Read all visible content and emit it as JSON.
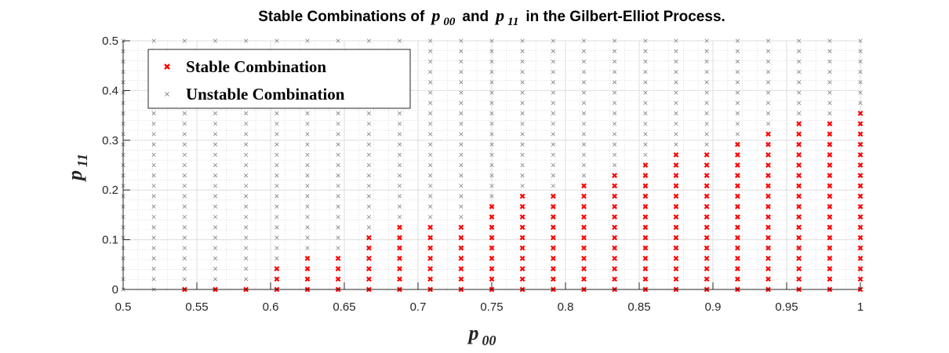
{
  "chart_data": {
    "type": "scatter",
    "title": {
      "prefix": "Stable Combinations of",
      "var1": "p",
      "var1_sub": "00",
      "middle": "and",
      "var2": "p",
      "var2_sub": "11",
      "suffix": "in the Gilbert-Elliot Process."
    },
    "xlabel": {
      "var": "p",
      "sub": "00"
    },
    "ylabel": {
      "var": "p",
      "sub": "11"
    },
    "xlim": [
      0.5,
      1.0
    ],
    "ylim": [
      0,
      0.5
    ],
    "xticks": [
      "0.5",
      "0.55",
      "0.6",
      "0.65",
      "0.7",
      "0.75",
      "0.8",
      "0.85",
      "0.9",
      "0.95",
      "1"
    ],
    "yticks": [
      "0",
      "0.1",
      "0.2",
      "0.3",
      "0.4",
      "0.5"
    ],
    "grid": true,
    "minor_grid": true,
    "legend_position": "top-left",
    "x": [
      0.5,
      0.5208,
      0.5417,
      0.5625,
      0.5833,
      0.6042,
      0.625,
      0.6458,
      0.6667,
      0.6875,
      0.7083,
      0.7292,
      0.75,
      0.7708,
      0.7917,
      0.8125,
      0.8333,
      0.8542,
      0.875,
      0.8958,
      0.9167,
      0.9375,
      0.9583,
      0.9792,
      1.0
    ],
    "y_step": 0.02083,
    "y_count": 25,
    "series": [
      {
        "name": "Stable Combination",
        "color": "#ff0000",
        "marker": "bold-x",
        "max_y": [
          null,
          null,
          0.0,
          0.0208,
          0.0208,
          0.0417,
          0.0625,
          0.0625,
          0.1042,
          0.125,
          0.125,
          0.1458,
          0.1667,
          0.1875,
          0.1875,
          0.2083,
          0.2292,
          0.25,
          0.2708,
          0.2708,
          0.2917,
          0.3125,
          0.3333,
          0.3333,
          0.3542
        ]
      },
      {
        "name": "Unstable Combination",
        "color": "#808080",
        "marker": "thin-x",
        "description": "all remaining grid points"
      }
    ]
  }
}
